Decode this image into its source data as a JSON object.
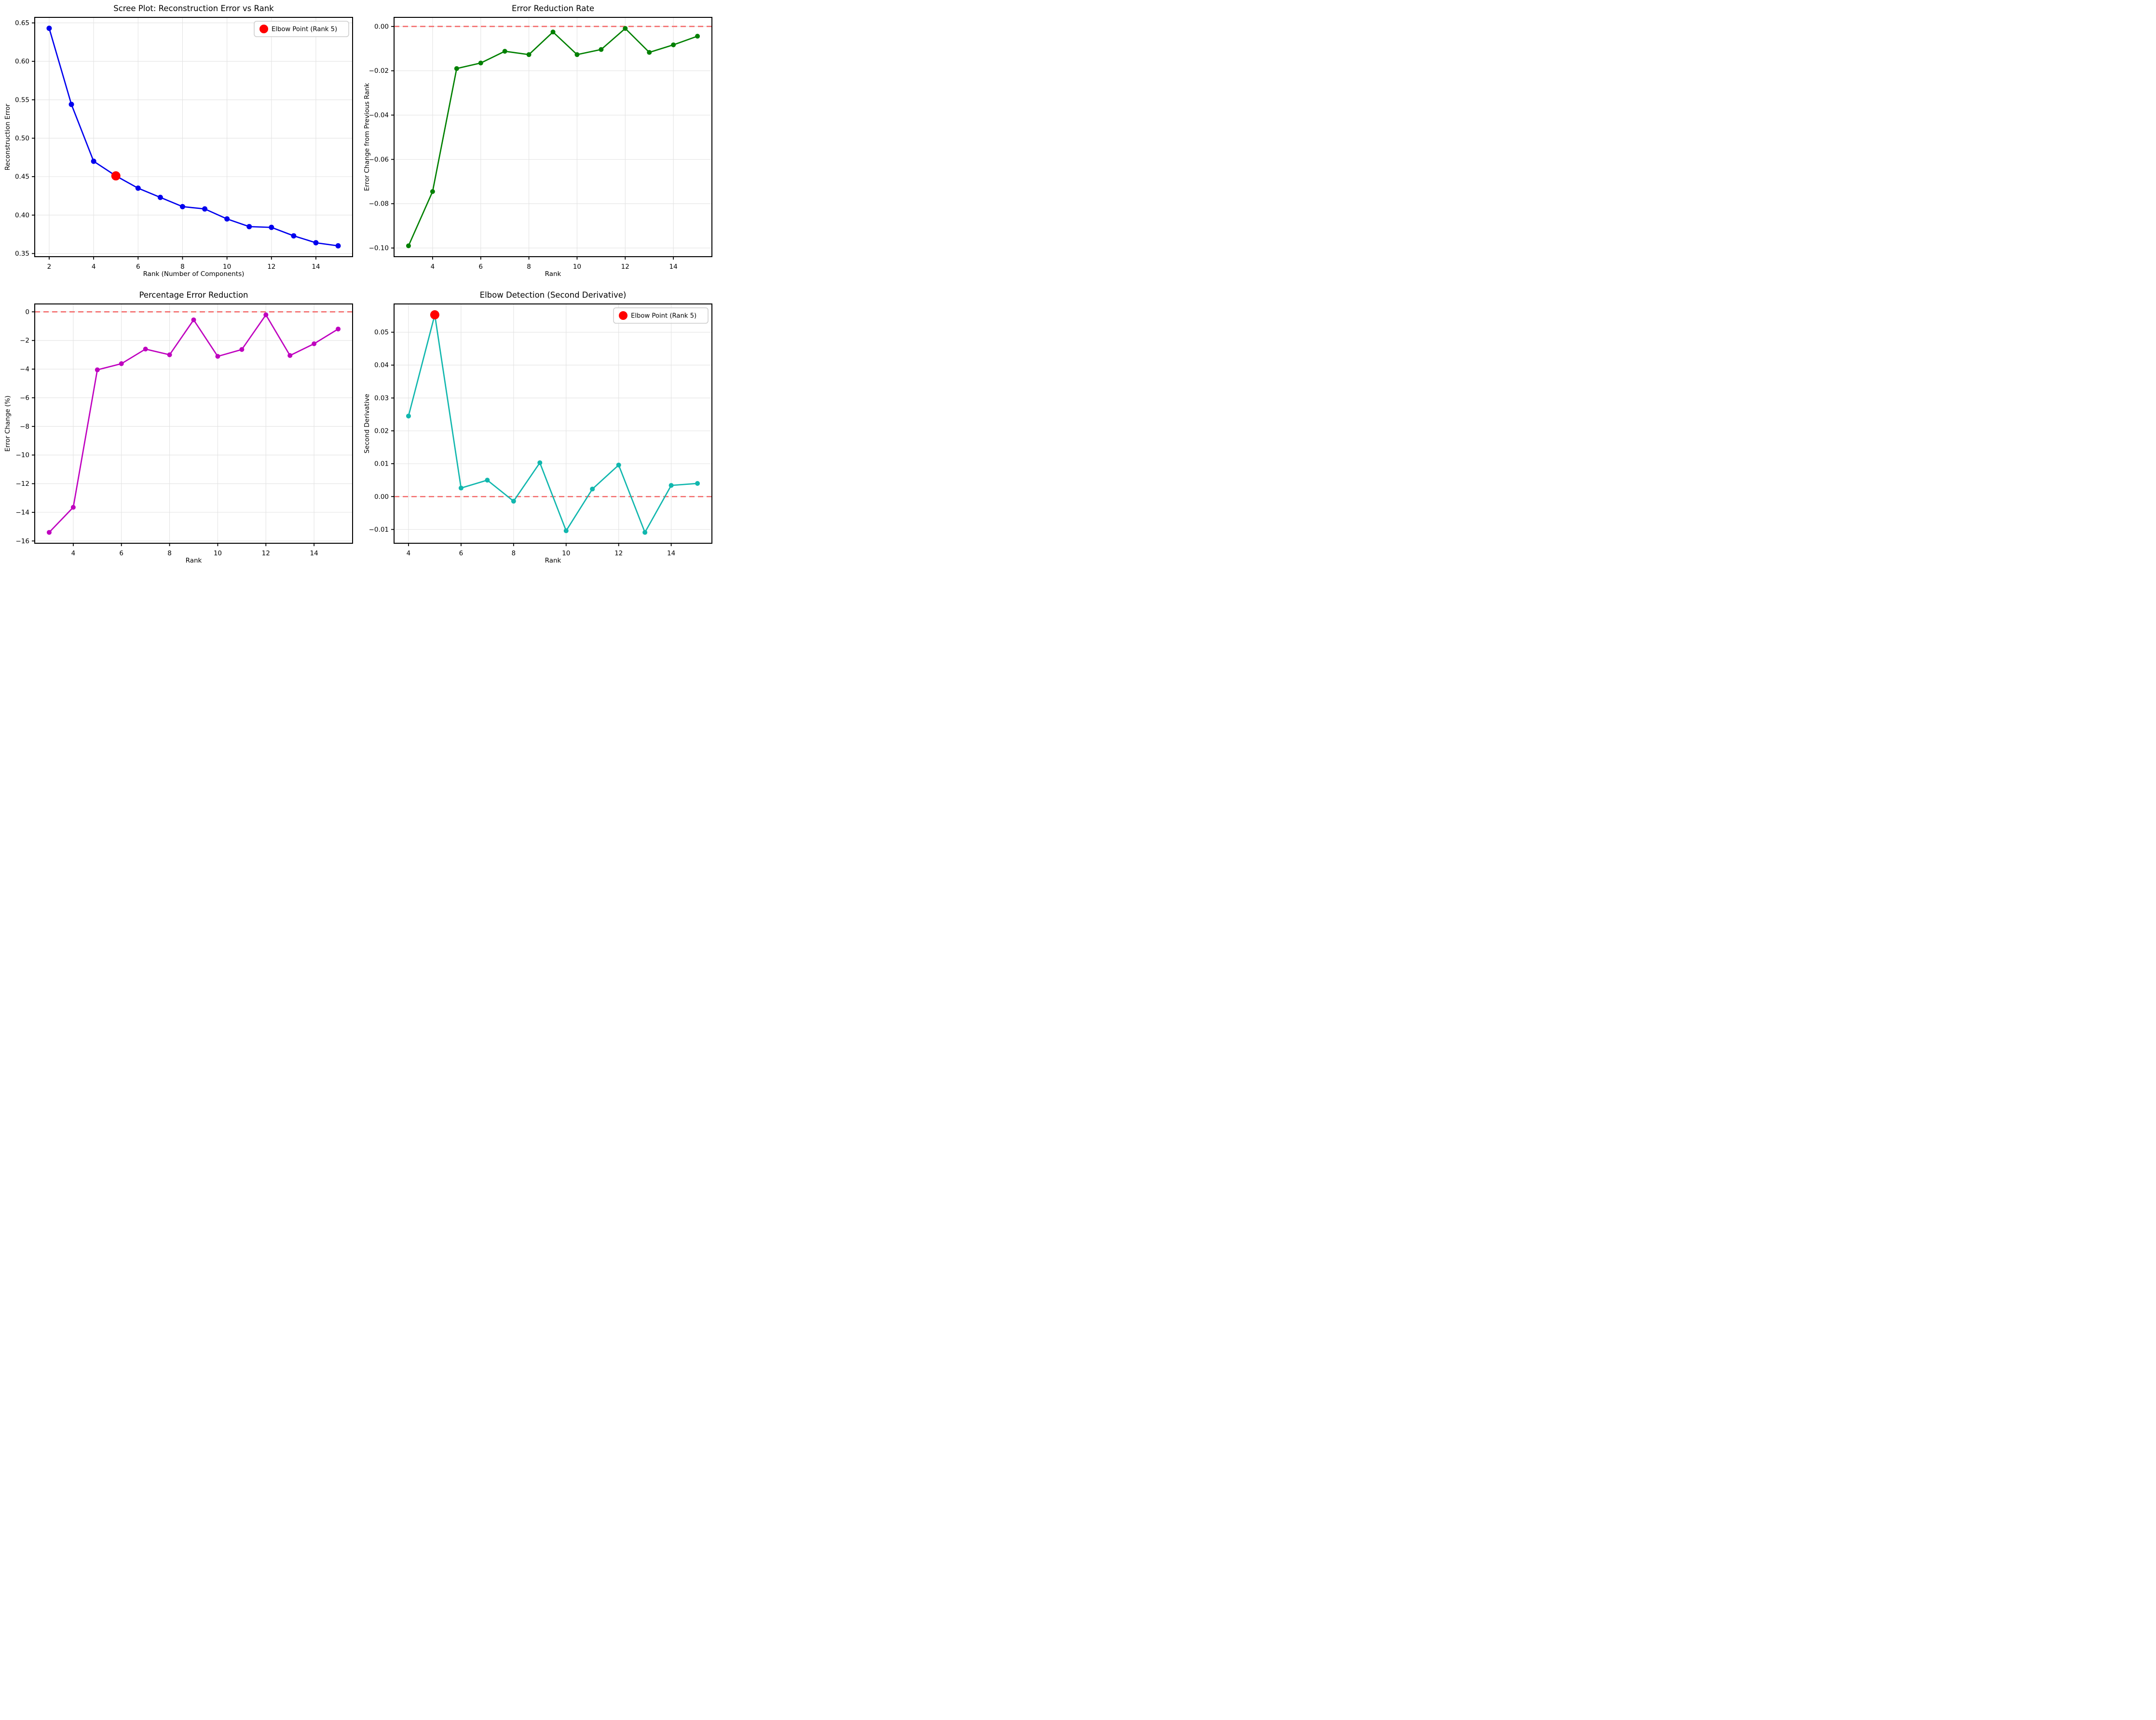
{
  "figure": {
    "background": "#FFFFFF",
    "grid_color": "#E3E3E3",
    "axis_color": "#000000",
    "zero_line_color": "#F45F5F",
    "elbow_color": "#FF0000",
    "tick_label_color": "#000000"
  },
  "chart_data": [
    {
      "id": "scree-plot",
      "type": "line",
      "title": "Scree Plot: Reconstruction Error vs Rank",
      "xlabel": "Rank (Number of Components)",
      "ylabel": "Reconstruction Error",
      "x": [
        2,
        3,
        4,
        5,
        6,
        7,
        8,
        9,
        10,
        11,
        12,
        13,
        14,
        15
      ],
      "y": [
        0.643,
        0.544,
        0.47,
        0.451,
        0.435,
        0.423,
        0.411,
        0.408,
        0.395,
        0.385,
        0.384,
        0.373,
        0.364,
        0.36
      ],
      "color": "#0000EE",
      "marker_radius": 5.5,
      "xticks": [
        2,
        4,
        6,
        8,
        10,
        12,
        14
      ],
      "yticks": [
        0.35,
        0.4,
        0.45,
        0.5,
        0.55,
        0.6,
        0.65
      ],
      "ytick_decimals": 2,
      "xlim": [
        1.35,
        15.65
      ],
      "ylim": [
        0.3459,
        0.6572
      ],
      "grid": true,
      "zero_line": false,
      "elbow": {
        "x": 5,
        "y": 0.451
      },
      "legend": {
        "label": "Elbow Point (Rank 5)",
        "marker_color": "#FF0000",
        "position": "top-right"
      }
    },
    {
      "id": "error-reduction-rate",
      "type": "line",
      "title": "Error Reduction Rate",
      "xlabel": "Rank",
      "ylabel": "Error Change from Previous Rank",
      "x": [
        3,
        4,
        5,
        6,
        7,
        8,
        9,
        10,
        11,
        12,
        13,
        14,
        15
      ],
      "y": [
        -0.099,
        -0.0745,
        -0.019,
        -0.0165,
        -0.0112,
        -0.0127,
        -0.0025,
        -0.0127,
        -0.0104,
        -0.0009,
        -0.0117,
        -0.0083,
        -0.0044
      ],
      "color": "#008000",
      "marker_radius": 5,
      "xticks": [
        4,
        6,
        8,
        10,
        12,
        14
      ],
      "yticks": [
        0.0,
        -0.02,
        -0.04,
        -0.06,
        -0.08,
        -0.1
      ],
      "ytick_decimals": 2,
      "xlim": [
        2.4,
        15.6
      ],
      "ylim": [
        -0.1039,
        0.0041
      ],
      "grid": true,
      "zero_line": true,
      "elbow": null,
      "legend": null
    },
    {
      "id": "percentage-error-reduction",
      "type": "line",
      "title": "Percentage Error Reduction",
      "xlabel": "Rank",
      "ylabel": "Error Change (%)",
      "x": [
        3,
        4,
        5,
        6,
        7,
        8,
        9,
        10,
        11,
        12,
        13,
        14,
        15
      ],
      "y": [
        -15.4,
        -13.65,
        -4.05,
        -3.62,
        -2.6,
        -3.0,
        -0.56,
        -3.11,
        -2.63,
        -0.21,
        -3.05,
        -2.23,
        -1.2
      ],
      "color": "#BF00BF",
      "marker_radius": 5,
      "xticks": [
        4,
        6,
        8,
        10,
        12,
        14
      ],
      "yticks": [
        0,
        -2,
        -4,
        -6,
        -8,
        -10,
        -12,
        -14,
        -16
      ],
      "ytick_decimals": 0,
      "xlim": [
        2.4,
        15.6
      ],
      "ylim": [
        -16.16,
        0.55
      ],
      "grid": true,
      "zero_line": true,
      "elbow": null,
      "legend": null
    },
    {
      "id": "elbow-detection",
      "type": "line",
      "title": "Elbow Detection (Second Derivative)",
      "xlabel": "Rank",
      "ylabel": "Second Derivative",
      "x": [
        4,
        5,
        6,
        7,
        8,
        9,
        10,
        11,
        12,
        13,
        14,
        15
      ],
      "y": [
        0.0245,
        0.0553,
        0.0026,
        0.005,
        -0.0014,
        0.0103,
        -0.0104,
        0.0023,
        0.0096,
        -0.0109,
        0.0034,
        0.004
      ],
      "color": "#11B7AE",
      "marker_radius": 5,
      "xticks": [
        4,
        6,
        8,
        10,
        12,
        14
      ],
      "yticks": [
        0.05,
        0.04,
        0.03,
        0.02,
        0.01,
        0.0,
        -0.01
      ],
      "ytick_decimals": 2,
      "xlim": [
        3.45,
        15.55
      ],
      "ylim": [
        -0.0142,
        0.0586
      ],
      "grid": true,
      "zero_line": true,
      "elbow": {
        "x": 5,
        "y": 0.0553
      },
      "legend": {
        "label": "Elbow Point (Rank 5)",
        "marker_color": "#FF0000",
        "position": "top-right"
      }
    }
  ]
}
